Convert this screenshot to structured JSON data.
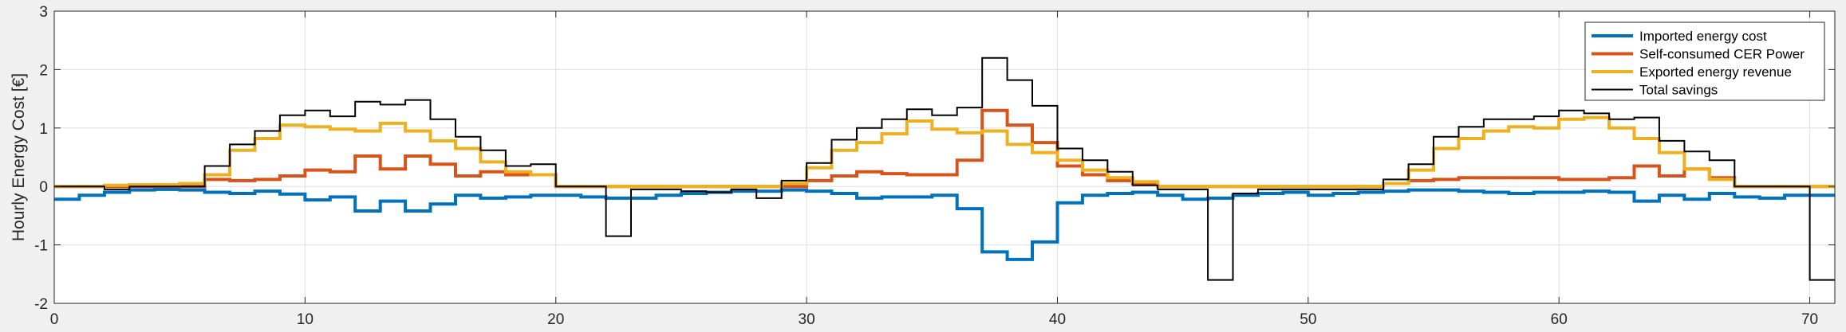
{
  "chart_data": {
    "type": "line",
    "step": true,
    "ylabel": "Hourly Energy Cost [€]",
    "xlabel": "",
    "title": "",
    "xlim": [
      0,
      71
    ],
    "ylim": [
      -2,
      3
    ],
    "xticks": [
      0,
      10,
      20,
      30,
      40,
      50,
      60,
      70
    ],
    "yticks": [
      -2,
      -1,
      0,
      1,
      2,
      3
    ],
    "grid": true,
    "legend_position": "top-right",
    "colors": {
      "imported": "#0072BD",
      "selfconsumed": "#D95319",
      "exported": "#EDB120",
      "total": "#000000"
    },
    "series": [
      {
        "name": "Imported energy cost",
        "color": "#0072BD",
        "width": 4,
        "values": [
          -0.22,
          -0.15,
          -0.1,
          -0.06,
          -0.05,
          -0.06,
          -0.1,
          -0.12,
          -0.08,
          -0.13,
          -0.23,
          -0.18,
          -0.42,
          -0.25,
          -0.42,
          -0.3,
          -0.15,
          -0.2,
          -0.18,
          -0.15,
          -0.15,
          -0.18,
          -0.2,
          -0.2,
          -0.15,
          -0.12,
          -0.1,
          -0.08,
          -0.08,
          -0.06,
          -0.08,
          -0.12,
          -0.2,
          -0.18,
          -0.18,
          -0.15,
          -0.38,
          -1.12,
          -1.25,
          -0.95,
          -0.28,
          -0.15,
          -0.12,
          -0.1,
          -0.15,
          -0.22,
          -0.2,
          -0.15,
          -0.12,
          -0.1,
          -0.15,
          -0.12,
          -0.1,
          -0.08,
          -0.06,
          -0.06,
          -0.08,
          -0.1,
          -0.12,
          -0.1,
          -0.1,
          -0.08,
          -0.1,
          -0.25,
          -0.15,
          -0.22,
          -0.12,
          -0.18,
          -0.2,
          -0.15,
          -0.15
        ]
      },
      {
        "name": "Self-consumed CER Power",
        "color": "#D95319",
        "width": 4,
        "values": [
          0,
          0,
          0,
          0,
          0,
          0,
          0.12,
          0.1,
          0.12,
          0.18,
          0.28,
          0.25,
          0.52,
          0.3,
          0.52,
          0.38,
          0.18,
          0.25,
          0.2,
          0.2,
          0,
          0,
          0,
          0,
          0,
          0,
          0,
          0,
          0,
          0,
          0.1,
          0.18,
          0.25,
          0.22,
          0.2,
          0.2,
          0.45,
          1.3,
          1.05,
          0.75,
          0.35,
          0.2,
          0.1,
          0.05,
          0,
          0,
          0,
          0,
          0,
          0,
          0,
          0,
          0,
          0.05,
          0.1,
          0.12,
          0.15,
          0.15,
          0.15,
          0.15,
          0.12,
          0.12,
          0.15,
          0.35,
          0.18,
          0.3,
          0.15,
          0,
          0,
          0,
          0
        ]
      },
      {
        "name": "Exported energy revenue",
        "color": "#EDB120",
        "width": 4,
        "values": [
          0,
          0,
          0.02,
          0.03,
          0.03,
          0.05,
          0.2,
          0.62,
          0.82,
          1.05,
          1.02,
          0.98,
          0.95,
          1.08,
          0.95,
          0.78,
          0.65,
          0.42,
          0.25,
          0.2,
          0,
          0,
          0,
          0,
          0,
          0,
          0,
          0,
          0,
          0.05,
          0.32,
          0.62,
          0.75,
          0.9,
          1.12,
          0.98,
          0.92,
          0.95,
          0.72,
          0.58,
          0.45,
          0.28,
          0.15,
          0.08,
          0,
          0,
          0,
          0,
          0,
          0,
          0,
          0,
          0,
          0.05,
          0.28,
          0.65,
          0.82,
          0.95,
          1.02,
          1.0,
          1.15,
          1.18,
          1.0,
          0.82,
          0.58,
          0.3,
          0.12,
          0,
          0,
          0,
          0
        ]
      },
      {
        "name": "Total savings",
        "color": "#000000",
        "width": 2,
        "values": [
          0,
          0,
          -0.05,
          0,
          0,
          0,
          0.35,
          0.72,
          0.95,
          1.22,
          1.3,
          1.2,
          1.45,
          1.4,
          1.48,
          1.15,
          0.85,
          0.62,
          0.35,
          0.38,
          0,
          0,
          -0.85,
          -0.05,
          -0.05,
          -0.08,
          -0.1,
          -0.05,
          -0.2,
          0.1,
          0.4,
          0.8,
          1.0,
          1.15,
          1.32,
          1.22,
          1.35,
          2.2,
          1.82,
          1.38,
          0.65,
          0.45,
          0.25,
          0.02,
          -0.05,
          -0.05,
          -1.6,
          -0.12,
          -0.05,
          -0.05,
          -0.05,
          -0.05,
          -0.05,
          0.12,
          0.38,
          0.85,
          1.02,
          1.15,
          1.15,
          1.2,
          1.3,
          1.25,
          1.15,
          1.18,
          0.78,
          0.6,
          0.45,
          0,
          0,
          0,
          -1.6
        ]
      }
    ]
  }
}
